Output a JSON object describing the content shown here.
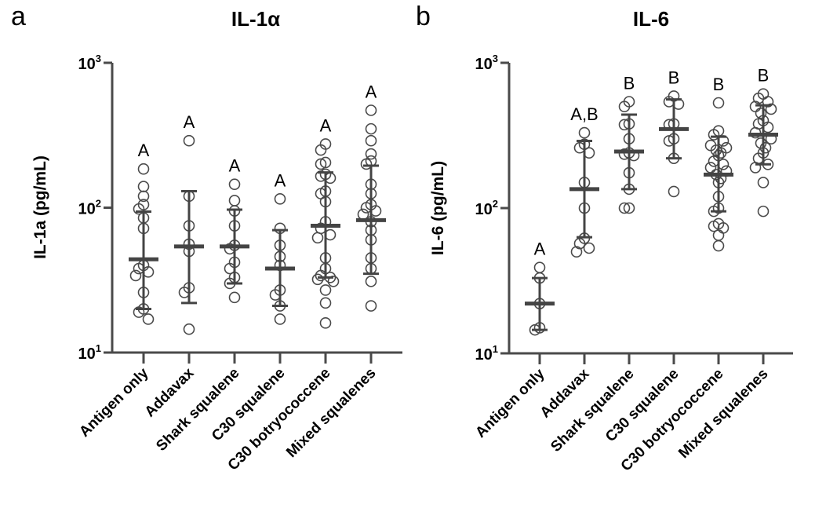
{
  "chart_data": [
    {
      "type": "scatter",
      "panel_letter": "a",
      "title": "IL-1α",
      "xlabel": "",
      "ylabel": "IL-1a (pg/mL)",
      "yscale": "log",
      "ylim": [
        10,
        1000
      ],
      "yticks": [
        {
          "base": "10",
          "exp": "1"
        },
        {
          "base": "10",
          "exp": "2"
        },
        {
          "base": "10",
          "exp": "3"
        }
      ],
      "grid": false,
      "categories": [
        "Antigen only",
        "Addavax",
        "Shark squalene",
        "C30 squalene",
        "C30 botryococcene",
        "Mixed squalenes"
      ],
      "significance_labels": [
        "A",
        "A",
        "A",
        "A",
        "A",
        "A"
      ],
      "groups": [
        {
          "name": "Antigen only",
          "mean": 44,
          "sd_low": 20,
          "sd_high": 94,
          "points": [
            185,
            140,
            120,
            105,
            98,
            85,
            72,
            40,
            38,
            36,
            34,
            26,
            20,
            19,
            17
          ]
        },
        {
          "name": "Addavax",
          "mean": 54,
          "sd_low": 22,
          "sd_high": 130,
          "points": [
            290,
            120,
            75,
            56,
            50,
            28,
            26,
            14.5
          ]
        },
        {
          "name": "Shark squalene",
          "mean": 54,
          "sd_low": 30,
          "sd_high": 97,
          "points": [
            145,
            112,
            95,
            75,
            55,
            52,
            42,
            38,
            33,
            30,
            24
          ]
        },
        {
          "name": "C30 squalene",
          "mean": 38,
          "sd_low": 21,
          "sd_high": 70,
          "points": [
            115,
            72,
            55,
            46,
            40,
            27,
            25,
            21,
            17
          ]
        },
        {
          "name": "C30 botryococcene",
          "mean": 75,
          "sd_low": 33,
          "sd_high": 175,
          "points": [
            275,
            250,
            205,
            200,
            170,
            165,
            160,
            130,
            125,
            110,
            80,
            72,
            65,
            62,
            45,
            38,
            34,
            33,
            32,
            31,
            27,
            22,
            16
          ]
        },
        {
          "name": "Mixed squalenes",
          "mean": 82,
          "sd_low": 35,
          "sd_high": 195,
          "points": [
            470,
            350,
            290,
            235,
            210,
            200,
            145,
            125,
            105,
            100,
            95,
            90,
            80,
            70,
            60,
            45,
            38,
            31,
            21
          ]
        }
      ]
    },
    {
      "type": "scatter",
      "panel_letter": "b",
      "title": "IL-6",
      "xlabel": "",
      "ylabel": "IL-6 (pg/mL)",
      "yscale": "log",
      "ylim": [
        10,
        1000
      ],
      "yticks": [
        {
          "base": "10",
          "exp": "1"
        },
        {
          "base": "10",
          "exp": "2"
        },
        {
          "base": "10",
          "exp": "3"
        }
      ],
      "grid": false,
      "categories": [
        "Antigen only",
        "Addavax",
        "Shark squalene",
        "C30 squalene",
        "C30 botryococcene",
        "Mixed squalenes"
      ],
      "significance_labels": [
        "A",
        "A,B",
        "B",
        "B",
        "B",
        "B"
      ],
      "groups": [
        {
          "name": "Antigen only",
          "mean": 22,
          "sd_low": 14.5,
          "sd_high": 33,
          "points": [
            39,
            33,
            22,
            15,
            14.5
          ]
        },
        {
          "name": "Addavax",
          "mean": 135,
          "sd_low": 63,
          "sd_high": 290,
          "points": [
            330,
            275,
            260,
            240,
            150,
            100,
            62,
            57,
            53,
            50
          ]
        },
        {
          "name": "Shark squalene",
          "mean": 245,
          "sd_low": 135,
          "sd_high": 440,
          "points": [
            540,
            500,
            380,
            375,
            300,
            240,
            235,
            230,
            175,
            135,
            100,
            100
          ]
        },
        {
          "name": "C30 squalene",
          "mean": 350,
          "sd_low": 220,
          "sd_high": 560,
          "points": [
            590,
            540,
            520,
            380,
            375,
            300,
            290,
            220,
            130
          ]
        },
        {
          "name": "C30 botryococcene",
          "mean": 170,
          "sd_low": 95,
          "sd_high": 310,
          "points": [
            530,
            340,
            320,
            290,
            270,
            260,
            250,
            240,
            230,
            210,
            200,
            190,
            180,
            170,
            160,
            150,
            120,
            100,
            95,
            78,
            75,
            73,
            65,
            55
          ]
        },
        {
          "name": "Mixed squalenes",
          "mean": 320,
          "sd_low": 200,
          "sd_high": 510,
          "points": [
            610,
            570,
            540,
            500,
            480,
            450,
            400,
            380,
            360,
            330,
            300,
            280,
            260,
            240,
            220,
            200,
            190,
            150,
            95
          ]
        }
      ]
    }
  ]
}
